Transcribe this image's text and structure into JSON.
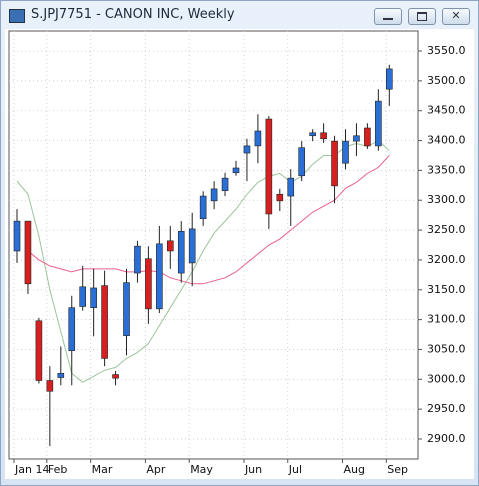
{
  "chart_data": {
    "type": "candlestick",
    "title": "S.JPJ7751 - CANON INC, Weekly",
    "categories": [
      "Jan 14",
      null,
      null,
      "Feb",
      null,
      null,
      null,
      "Mar",
      null,
      null,
      null,
      null,
      "Apr",
      null,
      null,
      null,
      "May",
      null,
      null,
      null,
      null,
      "Jun",
      null,
      null,
      null,
      "Jul",
      null,
      null,
      null,
      null,
      "Aug",
      null,
      null,
      null,
      "Sep"
    ],
    "open": [
      3215,
      3265,
      3098,
      2998,
      3003,
      3048,
      3122,
      3120,
      3157,
      3008,
      3073,
      3178,
      3202,
      3118,
      3232,
      3178,
      3195,
      3269,
      3299,
      3316,
      3346,
      3379,
      3391,
      3436,
      3310,
      3307,
      3341,
      3408,
      3413,
      3399,
      3362,
      3399,
      3421,
      3391,
      3486
    ],
    "high": [
      3285,
      3265,
      3103,
      3022,
      3055,
      3140,
      3190,
      3185,
      3182,
      3014,
      3185,
      3232,
      3223,
      3257,
      3257,
      3265,
      3279,
      3315,
      3332,
      3346,
      3366,
      3403,
      3444,
      3441,
      3319,
      3352,
      3399,
      3419,
      3429,
      3408,
      3419,
      3429,
      3429,
      3486,
      3527
    ],
    "low": [
      3195,
      3143,
      2993,
      2888,
      2990,
      2990,
      3115,
      3072,
      3022,
      2990,
      3040,
      3162,
      3093,
      3111,
      3185,
      3162,
      3156,
      3257,
      3285,
      3307,
      3341,
      3332,
      3362,
      3252,
      3282,
      3257,
      3332,
      3399,
      3396,
      3295,
      3352,
      3374,
      3386,
      3383,
      3458
    ],
    "close": [
      3265,
      3160,
      2998,
      2980,
      3010,
      3120,
      3155,
      3153,
      3035,
      3002,
      3162,
      3223,
      3118,
      3227,
      3215,
      3248,
      3252,
      3307,
      3319,
      3337,
      3354,
      3391,
      3416,
      3277,
      3299,
      3337,
      3388,
      3413,
      3403,
      3324,
      3399,
      3408,
      3391,
      3466,
      3520
    ],
    "up_color": "#2a6fd6",
    "down_color": "#d62020",
    "overlays": [
      {
        "color": "#9cc59c",
        "values": [
          3332,
          3310,
          3240,
          3150,
          3080,
          3010,
          2995,
          3005,
          3015,
          3020,
          3035,
          3045,
          3060,
          3090,
          3120,
          3150,
          3180,
          3215,
          3245,
          3265,
          3285,
          3310,
          3330,
          3340,
          3345,
          3330,
          3340,
          3360,
          3375,
          3375,
          3390,
          3395,
          3390,
          3400,
          3383
        ]
      },
      {
        "color": "#e8608a",
        "values": [
          null,
          3215,
          3200,
          3190,
          3185,
          3180,
          3185,
          3185,
          3185,
          3185,
          3180,
          3180,
          3182,
          3180,
          3170,
          3165,
          3160,
          3160,
          3165,
          3170,
          3180,
          3195,
          3210,
          3225,
          3235,
          3250,
          3265,
          3280,
          3290,
          3300,
          3320,
          3330,
          3345,
          3355,
          3375
        ]
      }
    ],
    "ylim": [
      2866.5,
      3583.5
    ],
    "yticks": [
      {
        "value": 2900,
        "label": "2900.0"
      },
      {
        "value": 2950,
        "label": "2950.0"
      },
      {
        "value": 3000,
        "label": "3000.0"
      },
      {
        "value": 3050,
        "label": "3050.0"
      },
      {
        "value": 3100,
        "label": "3100.0"
      },
      {
        "value": 3150,
        "label": "3150.0"
      },
      {
        "value": 3200,
        "label": "3200.0"
      },
      {
        "value": 3250,
        "label": "3250.0"
      },
      {
        "value": 3300,
        "label": "3300.0"
      },
      {
        "value": 3350,
        "label": "3350.0"
      },
      {
        "value": 3400,
        "label": "3400.0"
      },
      {
        "value": 3450,
        "label": "3450.0"
      },
      {
        "value": 3500,
        "label": "3500.0"
      },
      {
        "value": 3550,
        "label": "3550.0"
      }
    ],
    "grid": true
  }
}
